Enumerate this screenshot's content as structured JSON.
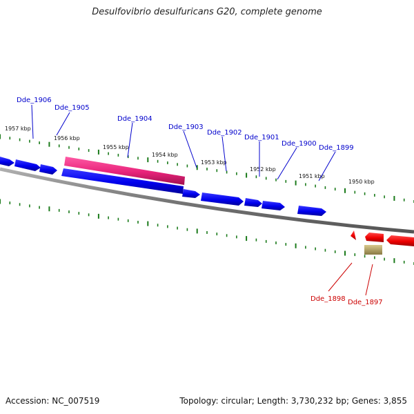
{
  "title": "Desulfovibrio desulfuricans G20, complete genome",
  "footer": {
    "accession": "Accession: NC_007519",
    "stats": "Topology: circular; Length: 3,730,232 bp; Genes: 3,855"
  },
  "colors": {
    "forward_gene": "#0000ee",
    "forward_label": "#0000cc",
    "reverse_gene": "#ee0000",
    "reverse_label": "#cc0000",
    "rna_gene": "#e8237a",
    "pseudo_gene": "#b8a66a",
    "backbone": "#888888",
    "ticks": "#1a7a1a"
  },
  "kbp_labels": [
    "1957 kbp",
    "1956 kbp",
    "1955 kbp",
    "1954 kbp",
    "1953 kbp",
    "1952 kbp",
    "1951 kbp",
    "1950 kbp"
  ],
  "genes": [
    {
      "id": "Dde_1906",
      "strand": "forward"
    },
    {
      "id": "Dde_1905",
      "strand": "forward"
    },
    {
      "id": "Dde_1904",
      "strand": "forward"
    },
    {
      "id": "Dde_1903",
      "strand": "forward"
    },
    {
      "id": "Dde_1902",
      "strand": "forward"
    },
    {
      "id": "Dde_1901",
      "strand": "forward"
    },
    {
      "id": "Dde_1900",
      "strand": "forward"
    },
    {
      "id": "Dde_1899",
      "strand": "forward"
    },
    {
      "id": "Dde_1898",
      "strand": "reverse"
    },
    {
      "id": "Dde_1897",
      "strand": "reverse"
    }
  ]
}
